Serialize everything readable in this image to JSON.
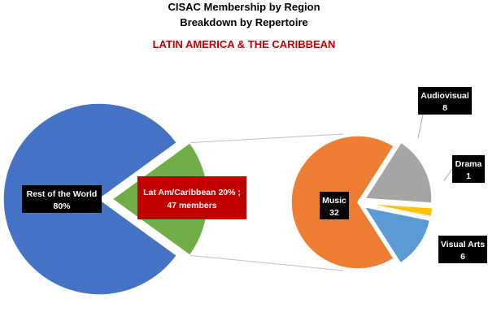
{
  "chart_data": {
    "type": "pie",
    "title": "CISAC Membership by Region",
    "subtitle": "Breakdown by Repertoire",
    "region_title": "LATIN AMERICA & THE CARIBBEAN",
    "colors": {
      "region_title": "#C00000",
      "label_box": "#000000",
      "highlight_box": "#C00000",
      "connector": "#BFBFBF"
    },
    "main_pie": {
      "slices": [
        {
          "name": "Rest of the World",
          "value": 80,
          "percent": "80%",
          "color": "#4472C4"
        },
        {
          "name": "Lat Am/Caribbean",
          "value": 20,
          "members": 47,
          "color": "#70AD47",
          "label_line1": "Lat Am/Caribbean 20% ;",
          "label_line2": "47 members"
        }
      ]
    },
    "breakdown_pie": {
      "slices": [
        {
          "name": "Music",
          "value": 32,
          "color": "#ED7D31"
        },
        {
          "name": "Audiovisual",
          "value": 8,
          "color": "#A5A5A5"
        },
        {
          "name": "Drama",
          "value": 1,
          "color": "#FFC000"
        },
        {
          "name": "Visual Arts",
          "value": 6,
          "color": "#5B9BD5"
        }
      ]
    }
  }
}
